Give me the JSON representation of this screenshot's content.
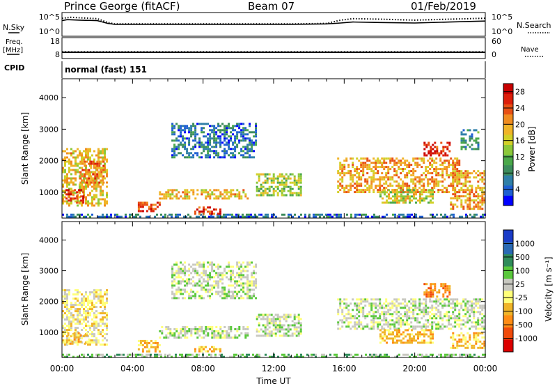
{
  "header": {
    "station": "Prince George (fitACF)",
    "beam": "Beam 07",
    "date": "01/Feb/2019"
  },
  "side_labels": {
    "nsky": "N.Sky",
    "freq": "Freq.",
    "freq_unit": "[MHz]",
    "cpid": "CPID",
    "nsearch": "N.Search",
    "nave": "Nave"
  },
  "cpid_text": "normal (fast) 151",
  "chart_data": [
    {
      "type": "line",
      "panel": "noise",
      "left_ticks": [
        "10^5",
        "10^0"
      ],
      "right_ticks": [
        "10^5",
        "10^0"
      ],
      "series": [
        {
          "name": "N.Sky",
          "style": "solid",
          "x": [
            0,
            0.3,
            1,
            2,
            2.6,
            3,
            5,
            7,
            9,
            11,
            13,
            15,
            15.8,
            16.5,
            18,
            20,
            22,
            24
          ],
          "y": [
            3.3,
            3.5,
            3.4,
            3.3,
            2.7,
            2.5,
            2.5,
            2.5,
            2.5,
            2.5,
            2.5,
            2.6,
            2.8,
            3.0,
            2.9,
            2.8,
            3.0,
            3.2
          ]
        },
        {
          "name": "N.Search",
          "style": "dotted",
          "x": [
            0,
            0.5,
            1,
            2,
            2.6,
            3,
            5,
            7,
            9,
            11,
            13,
            15,
            15.8,
            16.5,
            18,
            20,
            22,
            24
          ],
          "y": [
            3.8,
            4.0,
            3.9,
            3.7,
            2.9,
            2.6,
            2.6,
            2.6,
            2.6,
            2.6,
            2.6,
            2.7,
            3.4,
            3.7,
            3.6,
            3.4,
            3.6,
            3.8
          ]
        }
      ]
    },
    {
      "type": "line",
      "panel": "frequency",
      "left_ticks": [
        "18",
        "8"
      ],
      "right_ticks": [
        "60",
        "0"
      ],
      "series": [
        {
          "name": "Freq.",
          "style": "solid",
          "x": [
            0,
            24
          ],
          "y": [
            10.5,
            10.5
          ]
        },
        {
          "name": "Nave",
          "style": "dotted",
          "x": [
            0,
            24
          ],
          "y": [
            16.5,
            16.5
          ]
        }
      ]
    },
    {
      "type": "heatmap",
      "panel": "power",
      "xlabel": "",
      "ylabel": "Slant Range [km]",
      "xlim": [
        0,
        24
      ],
      "ylim": [
        180,
        4600
      ],
      "yticks": [
        1000,
        2000,
        3000,
        4000
      ],
      "colorbar": {
        "label": "Power [dB]",
        "ticks": [
          4,
          8,
          12,
          16,
          20,
          24,
          28
        ],
        "range": [
          0,
          30
        ],
        "colors": [
          "#0000ff",
          "#1e5fd2",
          "#2f7fa8",
          "#3c8c5c",
          "#4aa84a",
          "#8cc83a",
          "#d2d028",
          "#f0b428",
          "#f08c20",
          "#e85014",
          "#dc1e0a",
          "#c80000"
        ]
      },
      "regions": [
        {
          "t": [
            0,
            2.6
          ],
          "r": [
            600,
            2400
          ],
          "v": 18
        },
        {
          "t": [
            0.2,
            1.2
          ],
          "r": [
            700,
            1100
          ],
          "v": 26
        },
        {
          "t": [
            1.0,
            2.4
          ],
          "r": [
            1300,
            2000
          ],
          "v": 22
        },
        {
          "t": [
            0,
            24
          ],
          "r": [
            200,
            320
          ],
          "v": 6
        },
        {
          "t": [
            4.3,
            5.5
          ],
          "r": [
            400,
            700
          ],
          "v": 24
        },
        {
          "t": [
            5.5,
            10.5
          ],
          "r": [
            800,
            1100
          ],
          "v": 18
        },
        {
          "t": [
            7.5,
            9.0
          ],
          "r": [
            350,
            550
          ],
          "v": 25
        },
        {
          "t": [
            6.2,
            11.0
          ],
          "r": [
            2100,
            3200
          ],
          "v": 6
        },
        {
          "t": [
            11.0,
            13.6
          ],
          "r": [
            900,
            1600
          ],
          "v": 14
        },
        {
          "t": [
            15.6,
            22.5
          ],
          "r": [
            1000,
            2100
          ],
          "v": 20
        },
        {
          "t": [
            18.0,
            21.0
          ],
          "r": [
            650,
            1100
          ],
          "v": 16
        },
        {
          "t": [
            20.5,
            22.0
          ],
          "r": [
            2150,
            2600
          ],
          "v": 26
        },
        {
          "t": [
            22.0,
            23.9
          ],
          "r": [
            500,
            1700
          ],
          "v": 20
        },
        {
          "t": [
            22.6,
            23.6
          ],
          "r": [
            2400,
            3000
          ],
          "v": 8
        }
      ]
    },
    {
      "type": "heatmap",
      "panel": "velocity",
      "xlabel": "Time UT",
      "ylabel": "Slant Range [km]",
      "xlim": [
        0,
        24
      ],
      "ylim": [
        180,
        4600
      ],
      "xticks": [
        "00:00",
        "04:00",
        "08:00",
        "12:00",
        "16:00",
        "20:00",
        "00:00"
      ],
      "yticks": [
        1000,
        2000,
        3000,
        4000
      ],
      "colorbar": {
        "label": "Velocity [m s⁻¹]",
        "ticks": [
          "1000",
          "500",
          "100",
          "25",
          "-25",
          "-100",
          "-500",
          "-1000"
        ],
        "colors": [
          "#1a3cc8",
          "#2a6ab4",
          "#2f8c5a",
          "#5ac83c",
          "#c8c8c0",
          "#ffff78",
          "#f0b428",
          "#ff8c14",
          "#f04a0a",
          "#dc0000"
        ]
      },
      "regions": [
        {
          "t": [
            0,
            2.6
          ],
          "r": [
            600,
            2400
          ],
          "v": -100
        },
        {
          "t": [
            0.3,
            1.5
          ],
          "r": [
            600,
            1000
          ],
          "v": -500
        },
        {
          "t": [
            0,
            24
          ],
          "r": [
            180,
            300
          ],
          "v": 25
        },
        {
          "t": [
            4.3,
            5.5
          ],
          "r": [
            350,
            750
          ],
          "v": -500
        },
        {
          "t": [
            5.5,
            10.5
          ],
          "r": [
            800,
            1200
          ],
          "v": 0
        },
        {
          "t": [
            7.5,
            9.0
          ],
          "r": [
            350,
            550
          ],
          "v": -300
        },
        {
          "t": [
            6.2,
            11.0
          ],
          "r": [
            2100,
            3300
          ],
          "v": 0
        },
        {
          "t": [
            11.0,
            13.6
          ],
          "r": [
            900,
            1600
          ],
          "v": 0
        },
        {
          "t": [
            15.6,
            23.9
          ],
          "r": [
            1100,
            2100
          ],
          "v": 0
        },
        {
          "t": [
            18.0,
            21.0
          ],
          "r": [
            650,
            1100
          ],
          "v": -200
        },
        {
          "t": [
            20.5,
            22.0
          ],
          "r": [
            2150,
            2600
          ],
          "v": -700
        },
        {
          "t": [
            22.0,
            23.9
          ],
          "r": [
            500,
            1000
          ],
          "v": -300
        }
      ]
    }
  ]
}
